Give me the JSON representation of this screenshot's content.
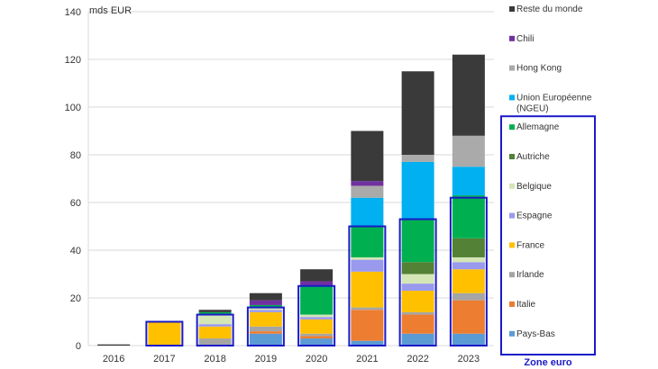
{
  "chart_data": {
    "type": "bar",
    "stacked": true,
    "unit_label": "mds EUR",
    "title": "",
    "xlabel": "",
    "ylabel": "",
    "ylim": [
      0,
      140
    ],
    "yticks": [
      0,
      20,
      40,
      60,
      80,
      100,
      120,
      140
    ],
    "grid": true,
    "categories": [
      "2016",
      "2017",
      "2018",
      "2019",
      "2020",
      "2021",
      "2022",
      "2023"
    ],
    "series": [
      {
        "name": "Pays-Bas",
        "color": "#5b9bd5",
        "values": [
          0,
          0,
          0,
          5,
          3,
          2,
          5,
          5
        ]
      },
      {
        "name": "Italie",
        "color": "#ed7d31",
        "values": [
          0,
          0,
          0,
          1,
          1,
          13,
          8,
          14
        ]
      },
      {
        "name": "Irlande",
        "color": "#a5a5a5",
        "values": [
          0,
          0,
          3,
          2,
          1,
          1,
          1,
          3
        ]
      },
      {
        "name": "France",
        "color": "#ffc000",
        "values": [
          0,
          10,
          5,
          6,
          6,
          15,
          9,
          10
        ]
      },
      {
        "name": "Espagne",
        "color": "#9999ee",
        "values": [
          0,
          0,
          1,
          1,
          1,
          5,
          3,
          3
        ]
      },
      {
        "name": "Belgique",
        "color": "#d4e6b5",
        "values": [
          0,
          0,
          4,
          1,
          1,
          1,
          4,
          2
        ]
      },
      {
        "name": "Autriche",
        "color": "#538135",
        "values": [
          0,
          0,
          0,
          0,
          0,
          0,
          5,
          8
        ]
      },
      {
        "name": "Allemagne",
        "color": "#00b050",
        "values": [
          0,
          0,
          1,
          1,
          12,
          13,
          18,
          18
        ]
      },
      {
        "name": "Union Européenne (NGEU)",
        "color": "#00b0f0",
        "values": [
          0,
          0,
          0,
          0,
          0,
          12,
          24,
          12
        ]
      },
      {
        "name": "Hong Kong",
        "color": "#aaaaaa",
        "values": [
          0,
          0,
          0,
          0,
          0,
          5,
          3,
          13
        ]
      },
      {
        "name": "Chili",
        "color": "#7030a0",
        "values": [
          0,
          0,
          0,
          2,
          2,
          2,
          0,
          0
        ]
      },
      {
        "name": "Reste du monde",
        "color": "#3a3a3a",
        "values": [
          0.5,
          0,
          1,
          3,
          5,
          21,
          35,
          34
        ]
      }
    ],
    "highlight_color": "#1a1ac8",
    "highlight_label": "Zone euro",
    "highlight_series_count": 8,
    "highlight_boxes": [
      {
        "category": "2017",
        "top": 10
      },
      {
        "category": "2018",
        "top": 13
      },
      {
        "category": "2019",
        "top": 16
      },
      {
        "category": "2020",
        "top": 25
      },
      {
        "category": "2021",
        "top": 50
      },
      {
        "category": "2022",
        "top": 53
      },
      {
        "category": "2023",
        "top": 62
      }
    ]
  }
}
